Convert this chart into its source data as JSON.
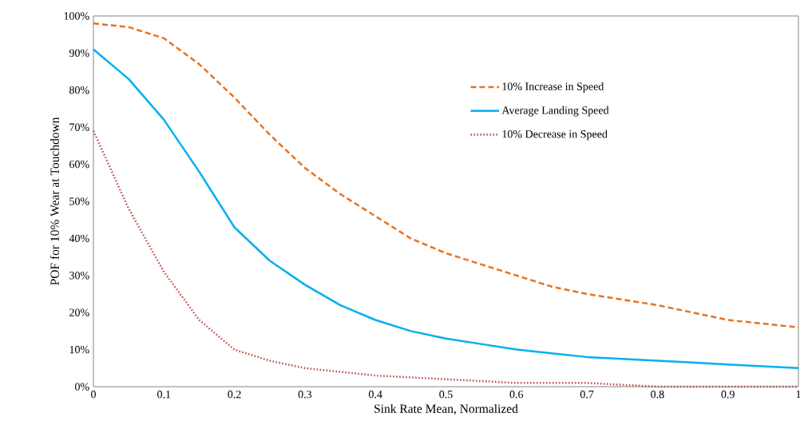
{
  "chart_data": {
    "type": "line",
    "xlabel": "Sink Rate Mean, Normalized",
    "ylabel": "POF for 10% Wear at Touchdown",
    "x": [
      0,
      0.05,
      0.1,
      0.15,
      0.2,
      0.25,
      0.3,
      0.35,
      0.4,
      0.45,
      0.5,
      0.55,
      0.6,
      0.65,
      0.7,
      0.75,
      0.8,
      0.85,
      0.9,
      0.95,
      1
    ],
    "series": [
      {
        "name": "10% Increase in Speed",
        "color": "#e8731f",
        "line_style": "dashed",
        "values": [
          98,
          97,
          94,
          87,
          78,
          68,
          59,
          52,
          46,
          40,
          36,
          33,
          30,
          27,
          25,
          23.5,
          22,
          20,
          18,
          17,
          16
        ]
      },
      {
        "name": "Average Landing Speed",
        "color": "#00b0f0",
        "line_style": "solid",
        "values": [
          91,
          83,
          72,
          58,
          43,
          34,
          27.5,
          22,
          18,
          15,
          13,
          11.5,
          10,
          9,
          8,
          7.5,
          7,
          6.5,
          6,
          5.5,
          5
        ]
      },
      {
        "name": "10% Decrease in Speed",
        "color": "#c0504d",
        "line_style": "dotted",
        "values": [
          69,
          48,
          31,
          18,
          10,
          7,
          5,
          4,
          3,
          2.5,
          2,
          1.5,
          1,
          1,
          1,
          0.5,
          0,
          0,
          0,
          0,
          0
        ]
      }
    ],
    "xlim": [
      0,
      1
    ],
    "ylim": [
      0,
      100
    ],
    "xticks": [
      0,
      0.1,
      0.2,
      0.3,
      0.4,
      0.5,
      0.6,
      0.7,
      0.8,
      0.9,
      1
    ],
    "yticks": [
      {
        "value": 0,
        "label": "0%"
      },
      {
        "value": 10,
        "label": "10%"
      },
      {
        "value": 20,
        "label": "20%"
      },
      {
        "value": 30,
        "label": "30%"
      },
      {
        "value": 40,
        "label": "40%"
      },
      {
        "value": 50,
        "label": "50%"
      },
      {
        "value": 60,
        "label": "60%"
      },
      {
        "value": 70,
        "label": "70%"
      },
      {
        "value": 80,
        "label": "80%"
      },
      {
        "value": 90,
        "label": "90%"
      },
      {
        "value": 100,
        "label": "100%"
      }
    ],
    "legend": "right",
    "grid": false,
    "marker": "none"
  }
}
